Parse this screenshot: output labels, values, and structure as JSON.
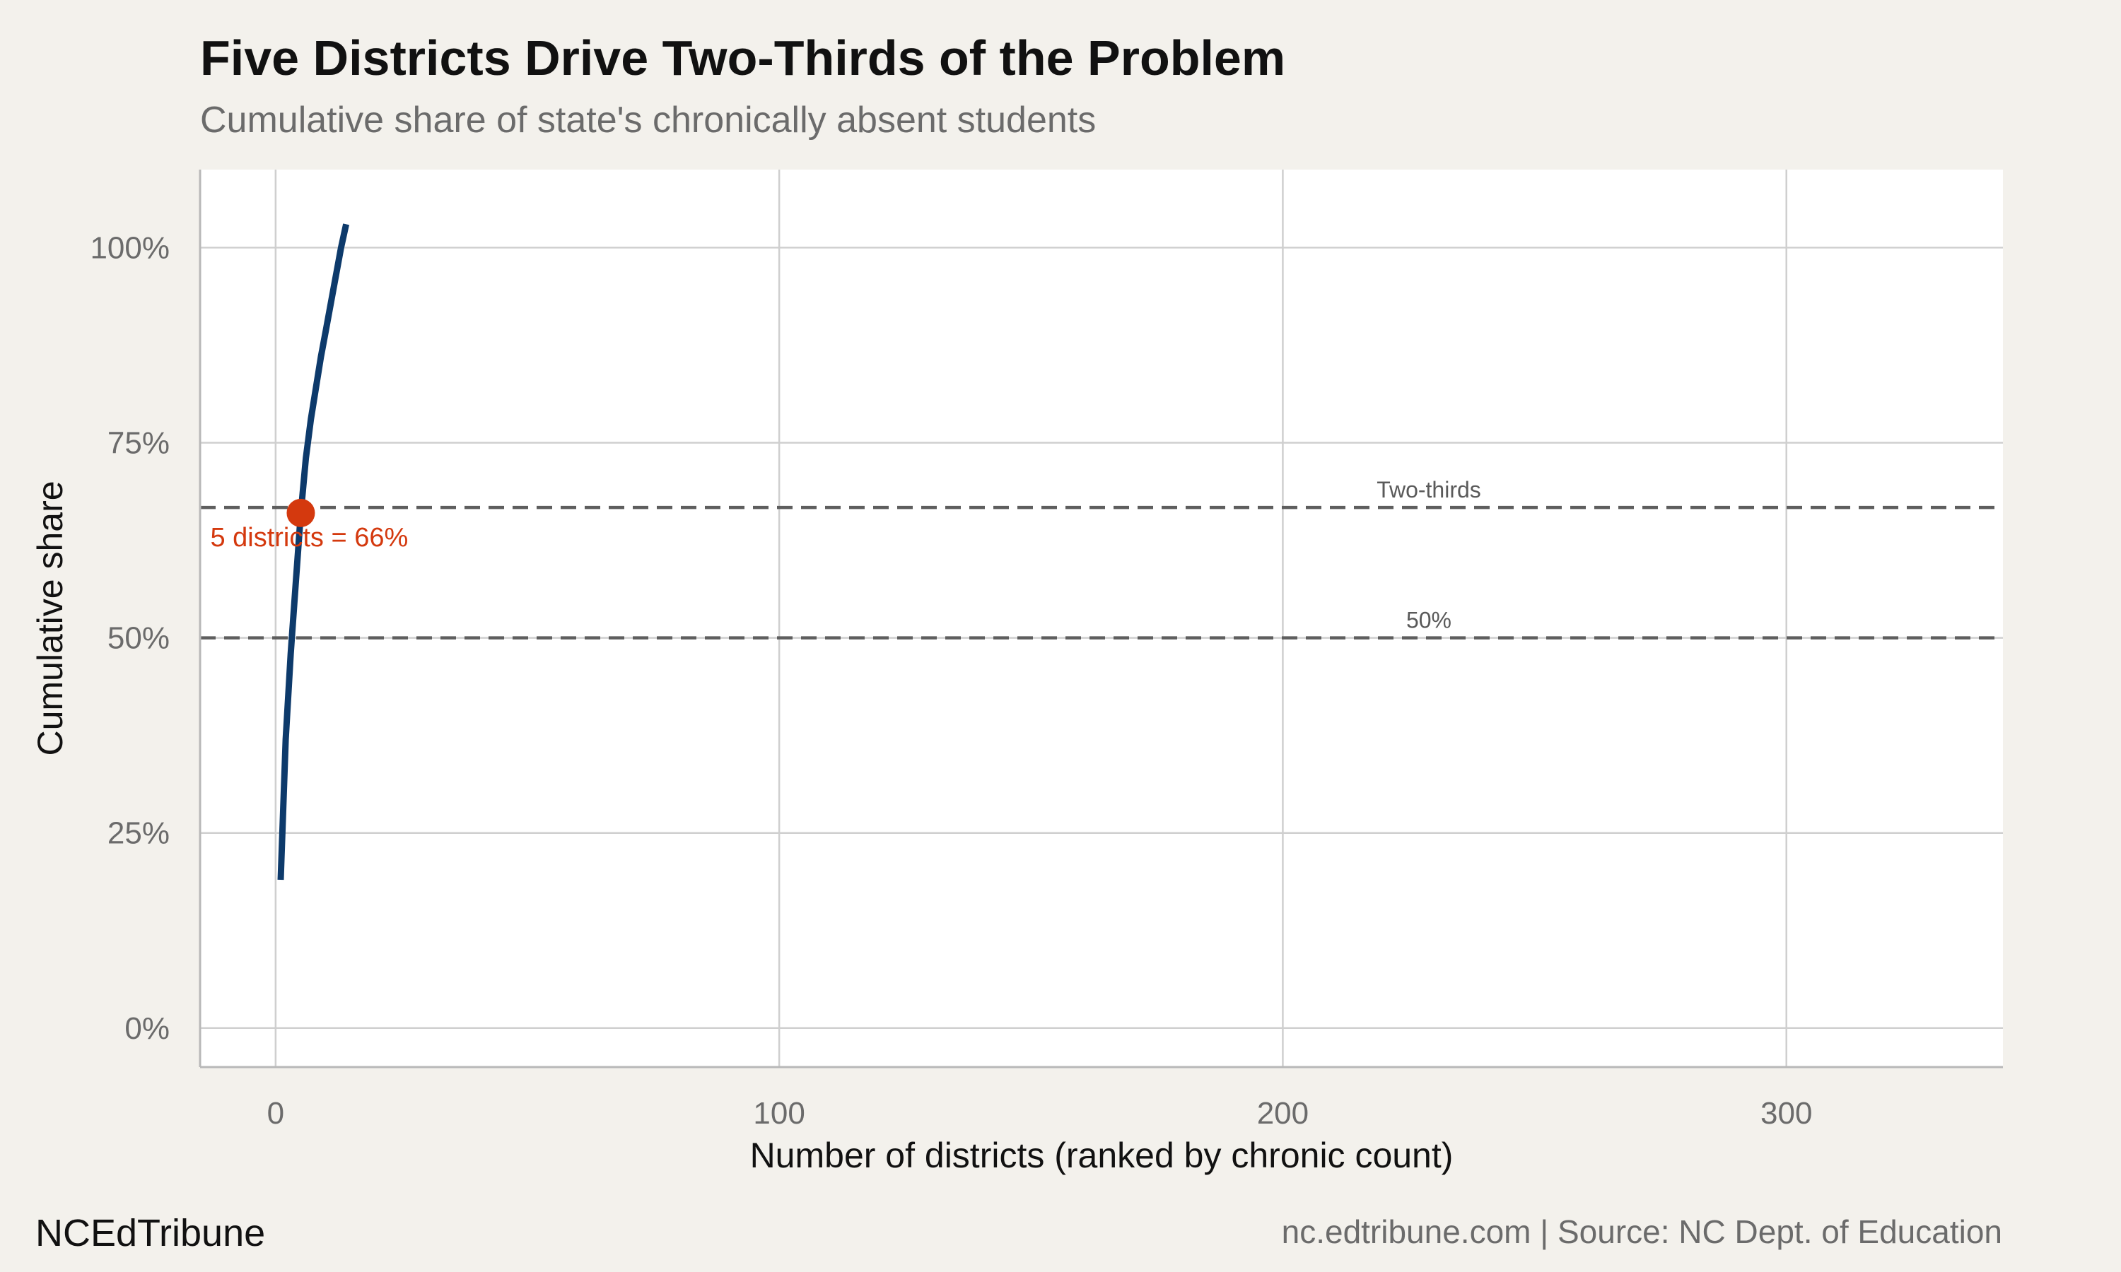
{
  "chart_data": {
    "type": "line",
    "title": "Five Districts Drive Two-Thirds of the Problem",
    "subtitle": "Cumulative share of state's chronically absent students",
    "xlabel": "Number of districts (ranked by chronic count)",
    "ylabel": "Cumulative share",
    "xlim": [
      -15,
      343
    ],
    "ylim": [
      -5,
      110
    ],
    "x_ticks": [
      0,
      100,
      200,
      300
    ],
    "x_tick_labels": [
      "0",
      "100",
      "200",
      "300"
    ],
    "y_ticks": [
      0,
      25,
      50,
      75,
      100
    ],
    "y_tick_labels": [
      "0%",
      "25%",
      "50%",
      "75%",
      "100%"
    ],
    "grid": true,
    "series": [
      {
        "name": "Cumulative share",
        "color": "#0d3a6b",
        "x": [
          1,
          2,
          3,
          4,
          5,
          6,
          7,
          8,
          9,
          10,
          11,
          12,
          13,
          14
        ],
        "y": [
          19,
          37,
          48,
          57,
          66,
          73,
          78,
          82,
          86,
          89.5,
          93,
          96.5,
          100,
          103
        ]
      }
    ],
    "reference_lines": [
      {
        "label": "Two-thirds",
        "y": 66.7,
        "color": "#5e5e5e",
        "label_x": 229
      },
      {
        "label": "50%",
        "y": 50,
        "color": "#5e5e5e",
        "label_x": 229
      }
    ],
    "highlight": {
      "x": 5,
      "y": 66,
      "label": "5 districts = 66%",
      "color": "#d4390e"
    }
  },
  "footer": {
    "brand": "NCEdTribune",
    "source": "nc.edtribune.com | Source: NC Dept. of Education"
  }
}
